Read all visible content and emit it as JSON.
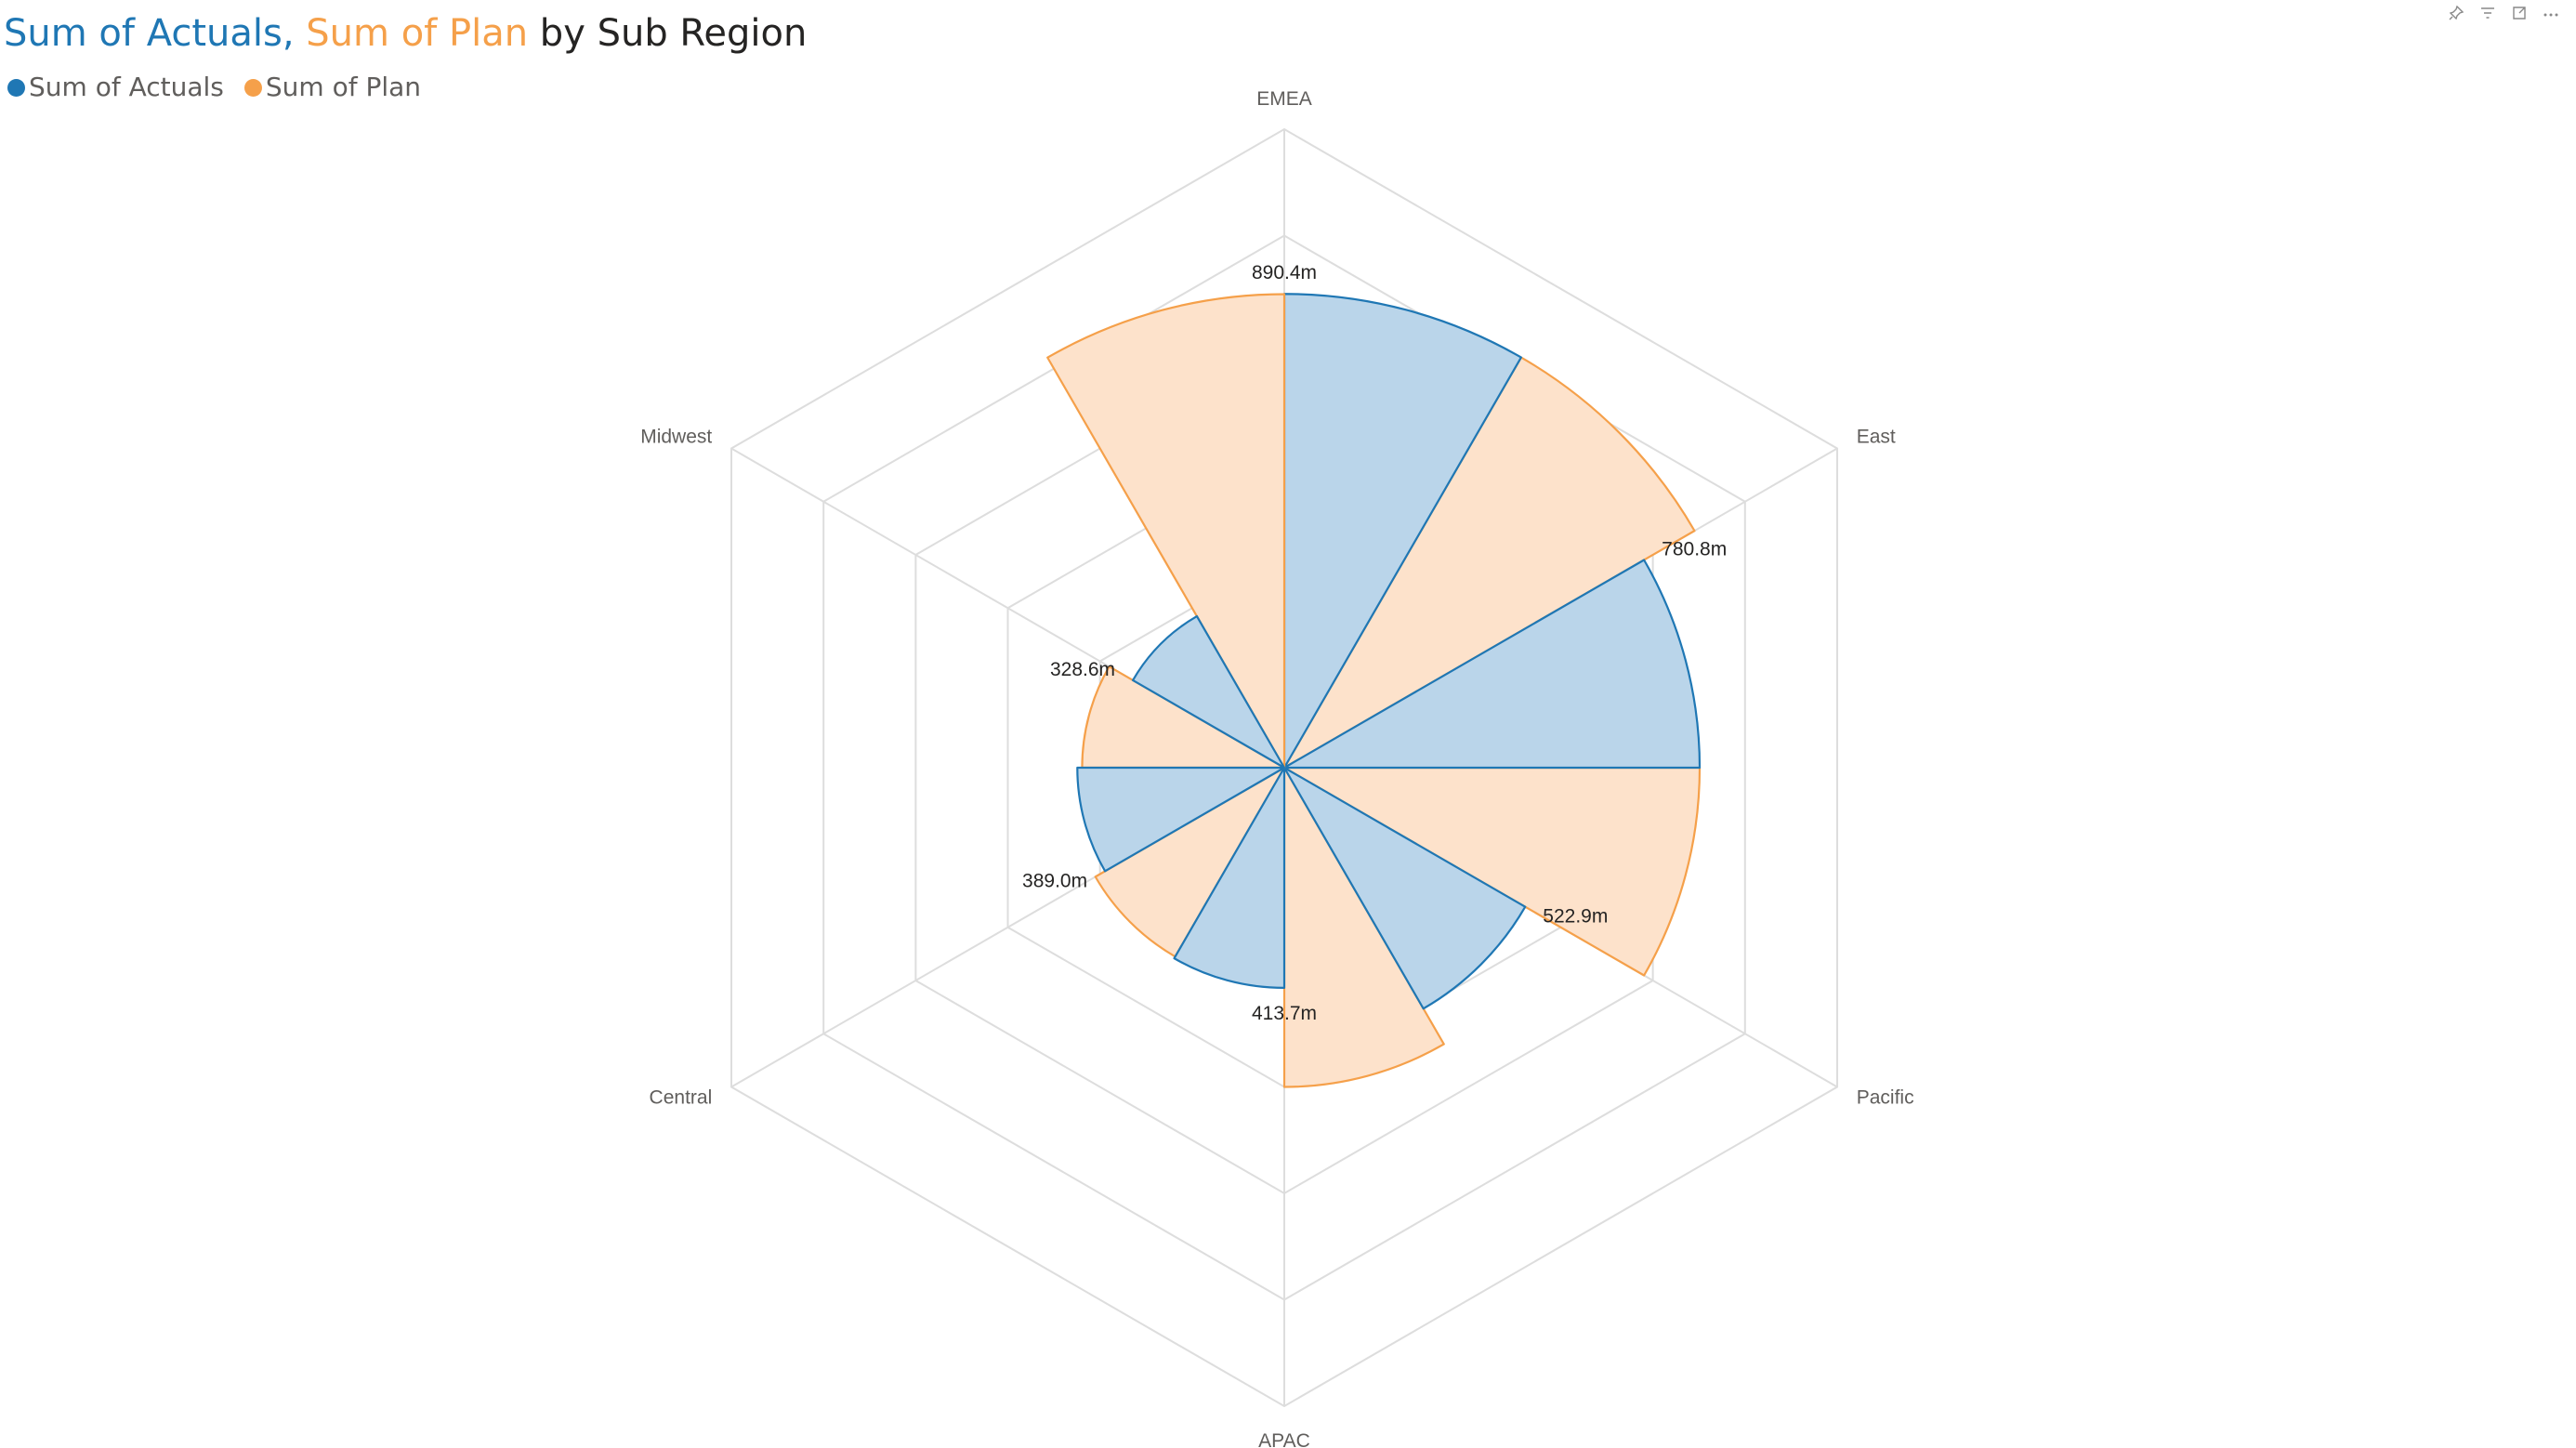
{
  "visual": {
    "title": {
      "part1": "Sum of Actuals,",
      "part2": "Sum of Plan",
      "part3": "by Sub Region"
    },
    "toolbar": [
      {
        "icon": "pin-icon"
      },
      {
        "icon": "filter-icon"
      },
      {
        "icon": "focus-mode-icon"
      },
      {
        "icon": "more-options-icon"
      }
    ]
  },
  "colors": {
    "actuals": "#1f77b4",
    "actuals_fill": "#bad5ea",
    "plan": "#f5a04a",
    "plan_fill": "#fde2cb",
    "grid": "#dddddd"
  },
  "chart_data": {
    "type": "polar-bar",
    "title": "Sum of Actuals, Sum of Plan by Sub Region",
    "categories": [
      "EMEA",
      "East",
      "Pacific",
      "APAC",
      "Central",
      "Midwest"
    ],
    "series": [
      {
        "name": "Sum of Actuals",
        "values": [
          890.4,
          780.8,
          522.9,
          413.7,
          389.0,
          328.6
        ]
      },
      {
        "name": "Sum of Plan",
        "values": [
          890.4,
          780.8,
          600,
          410,
          380,
          890
        ]
      }
    ],
    "data_labels": [
      "890.4m",
      "780.8m",
      "522.9m",
      "413.7m",
      "389.0m",
      "328.6m"
    ],
    "rmax": 1200,
    "gridlines": 6,
    "legend": "top-left",
    "grid": true
  }
}
